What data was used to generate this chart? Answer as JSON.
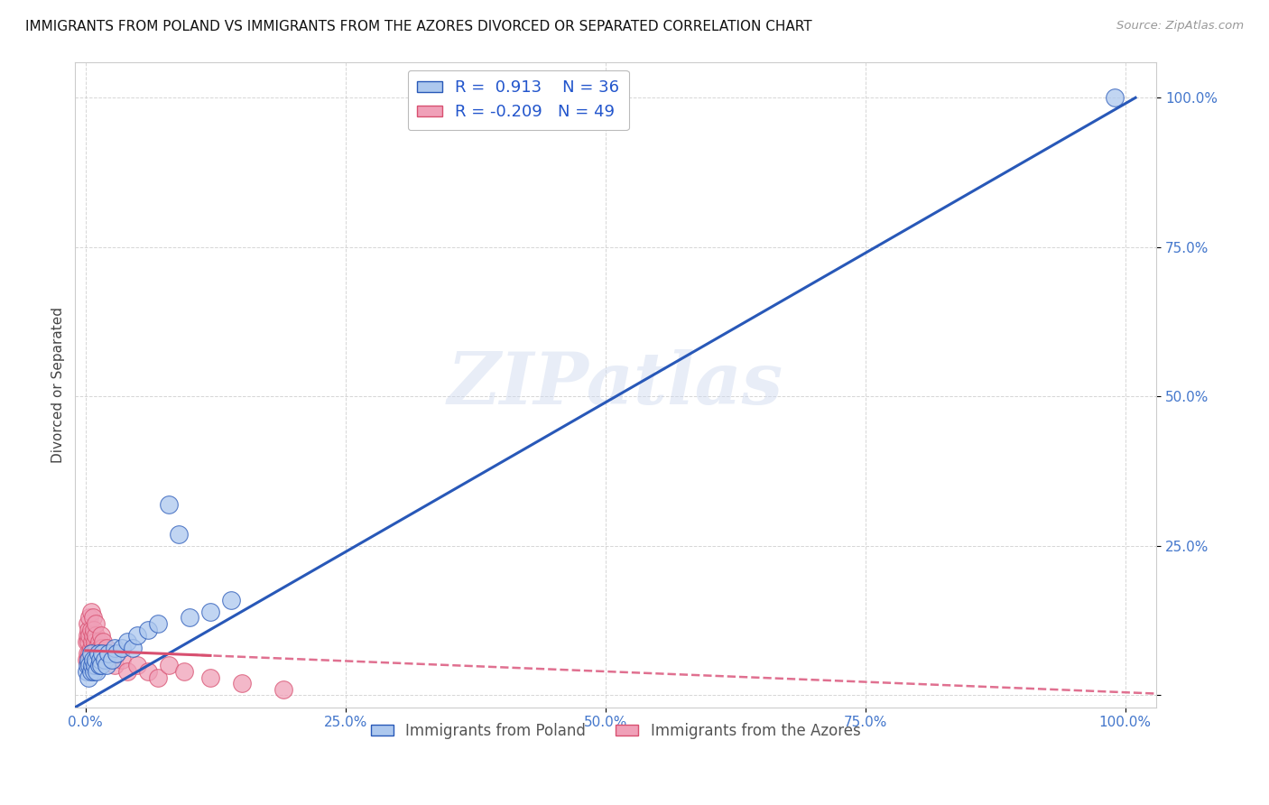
{
  "title": "IMMIGRANTS FROM POLAND VS IMMIGRANTS FROM THE AZORES DIVORCED OR SEPARATED CORRELATION CHART",
  "source": "Source: ZipAtlas.com",
  "ylabel": "Divorced or Separated",
  "xlabel": "",
  "xlim": [
    0,
    1.0
  ],
  "ylim": [
    0,
    1.0
  ],
  "xticks": [
    0.0,
    0.25,
    0.5,
    0.75,
    1.0
  ],
  "yticks": [
    0.0,
    0.25,
    0.5,
    0.75,
    1.0
  ],
  "xtick_labels": [
    "0.0%",
    "25.0%",
    "50.0%",
    "75.0%",
    "100.0%"
  ],
  "ytick_labels": [
    "",
    "25.0%",
    "50.0%",
    "75.0%",
    "100.0%"
  ],
  "poland_color": "#adc8ee",
  "azores_color": "#f0a0b8",
  "poland_line_color": "#2858b8",
  "azores_line_color": "#d85070",
  "azores_dash_color": "#e07090",
  "R_poland": 0.913,
  "N_poland": 36,
  "R_azores": -0.209,
  "N_azores": 49,
  "watermark": "ZIPatlas",
  "legend_label_poland": "Immigrants from Poland",
  "legend_label_azores": "Immigrants from the Azores",
  "poland_x": [
    0.001,
    0.002,
    0.003,
    0.003,
    0.004,
    0.005,
    0.005,
    0.006,
    0.007,
    0.008,
    0.009,
    0.01,
    0.011,
    0.012,
    0.013,
    0.014,
    0.015,
    0.016,
    0.018,
    0.02,
    0.022,
    0.025,
    0.028,
    0.03,
    0.035,
    0.04,
    0.045,
    0.05,
    0.06,
    0.07,
    0.08,
    0.09,
    0.1,
    0.12,
    0.14,
    0.99
  ],
  "poland_y": [
    0.04,
    0.05,
    0.03,
    0.06,
    0.05,
    0.04,
    0.07,
    0.05,
    0.06,
    0.04,
    0.05,
    0.06,
    0.04,
    0.07,
    0.05,
    0.06,
    0.05,
    0.07,
    0.06,
    0.05,
    0.07,
    0.06,
    0.08,
    0.07,
    0.08,
    0.09,
    0.08,
    0.1,
    0.11,
    0.12,
    0.32,
    0.27,
    0.13,
    0.14,
    0.16,
    1.0
  ],
  "azores_x": [
    0.001,
    0.001,
    0.002,
    0.002,
    0.002,
    0.003,
    0.003,
    0.003,
    0.004,
    0.004,
    0.004,
    0.005,
    0.005,
    0.005,
    0.006,
    0.006,
    0.007,
    0.007,
    0.007,
    0.008,
    0.008,
    0.009,
    0.009,
    0.01,
    0.01,
    0.01,
    0.011,
    0.012,
    0.013,
    0.014,
    0.015,
    0.016,
    0.017,
    0.018,
    0.02,
    0.022,
    0.025,
    0.028,
    0.03,
    0.035,
    0.04,
    0.05,
    0.06,
    0.07,
    0.08,
    0.095,
    0.12,
    0.15,
    0.19
  ],
  "azores_y": [
    0.06,
    0.09,
    0.07,
    0.1,
    0.12,
    0.06,
    0.09,
    0.11,
    0.07,
    0.1,
    0.13,
    0.08,
    0.11,
    0.14,
    0.06,
    0.09,
    0.07,
    0.1,
    0.13,
    0.08,
    0.11,
    0.06,
    0.09,
    0.07,
    0.1,
    0.12,
    0.08,
    0.07,
    0.09,
    0.08,
    0.1,
    0.08,
    0.09,
    0.07,
    0.08,
    0.07,
    0.06,
    0.05,
    0.07,
    0.06,
    0.04,
    0.05,
    0.04,
    0.03,
    0.05,
    0.04,
    0.03,
    0.02,
    0.01
  ]
}
